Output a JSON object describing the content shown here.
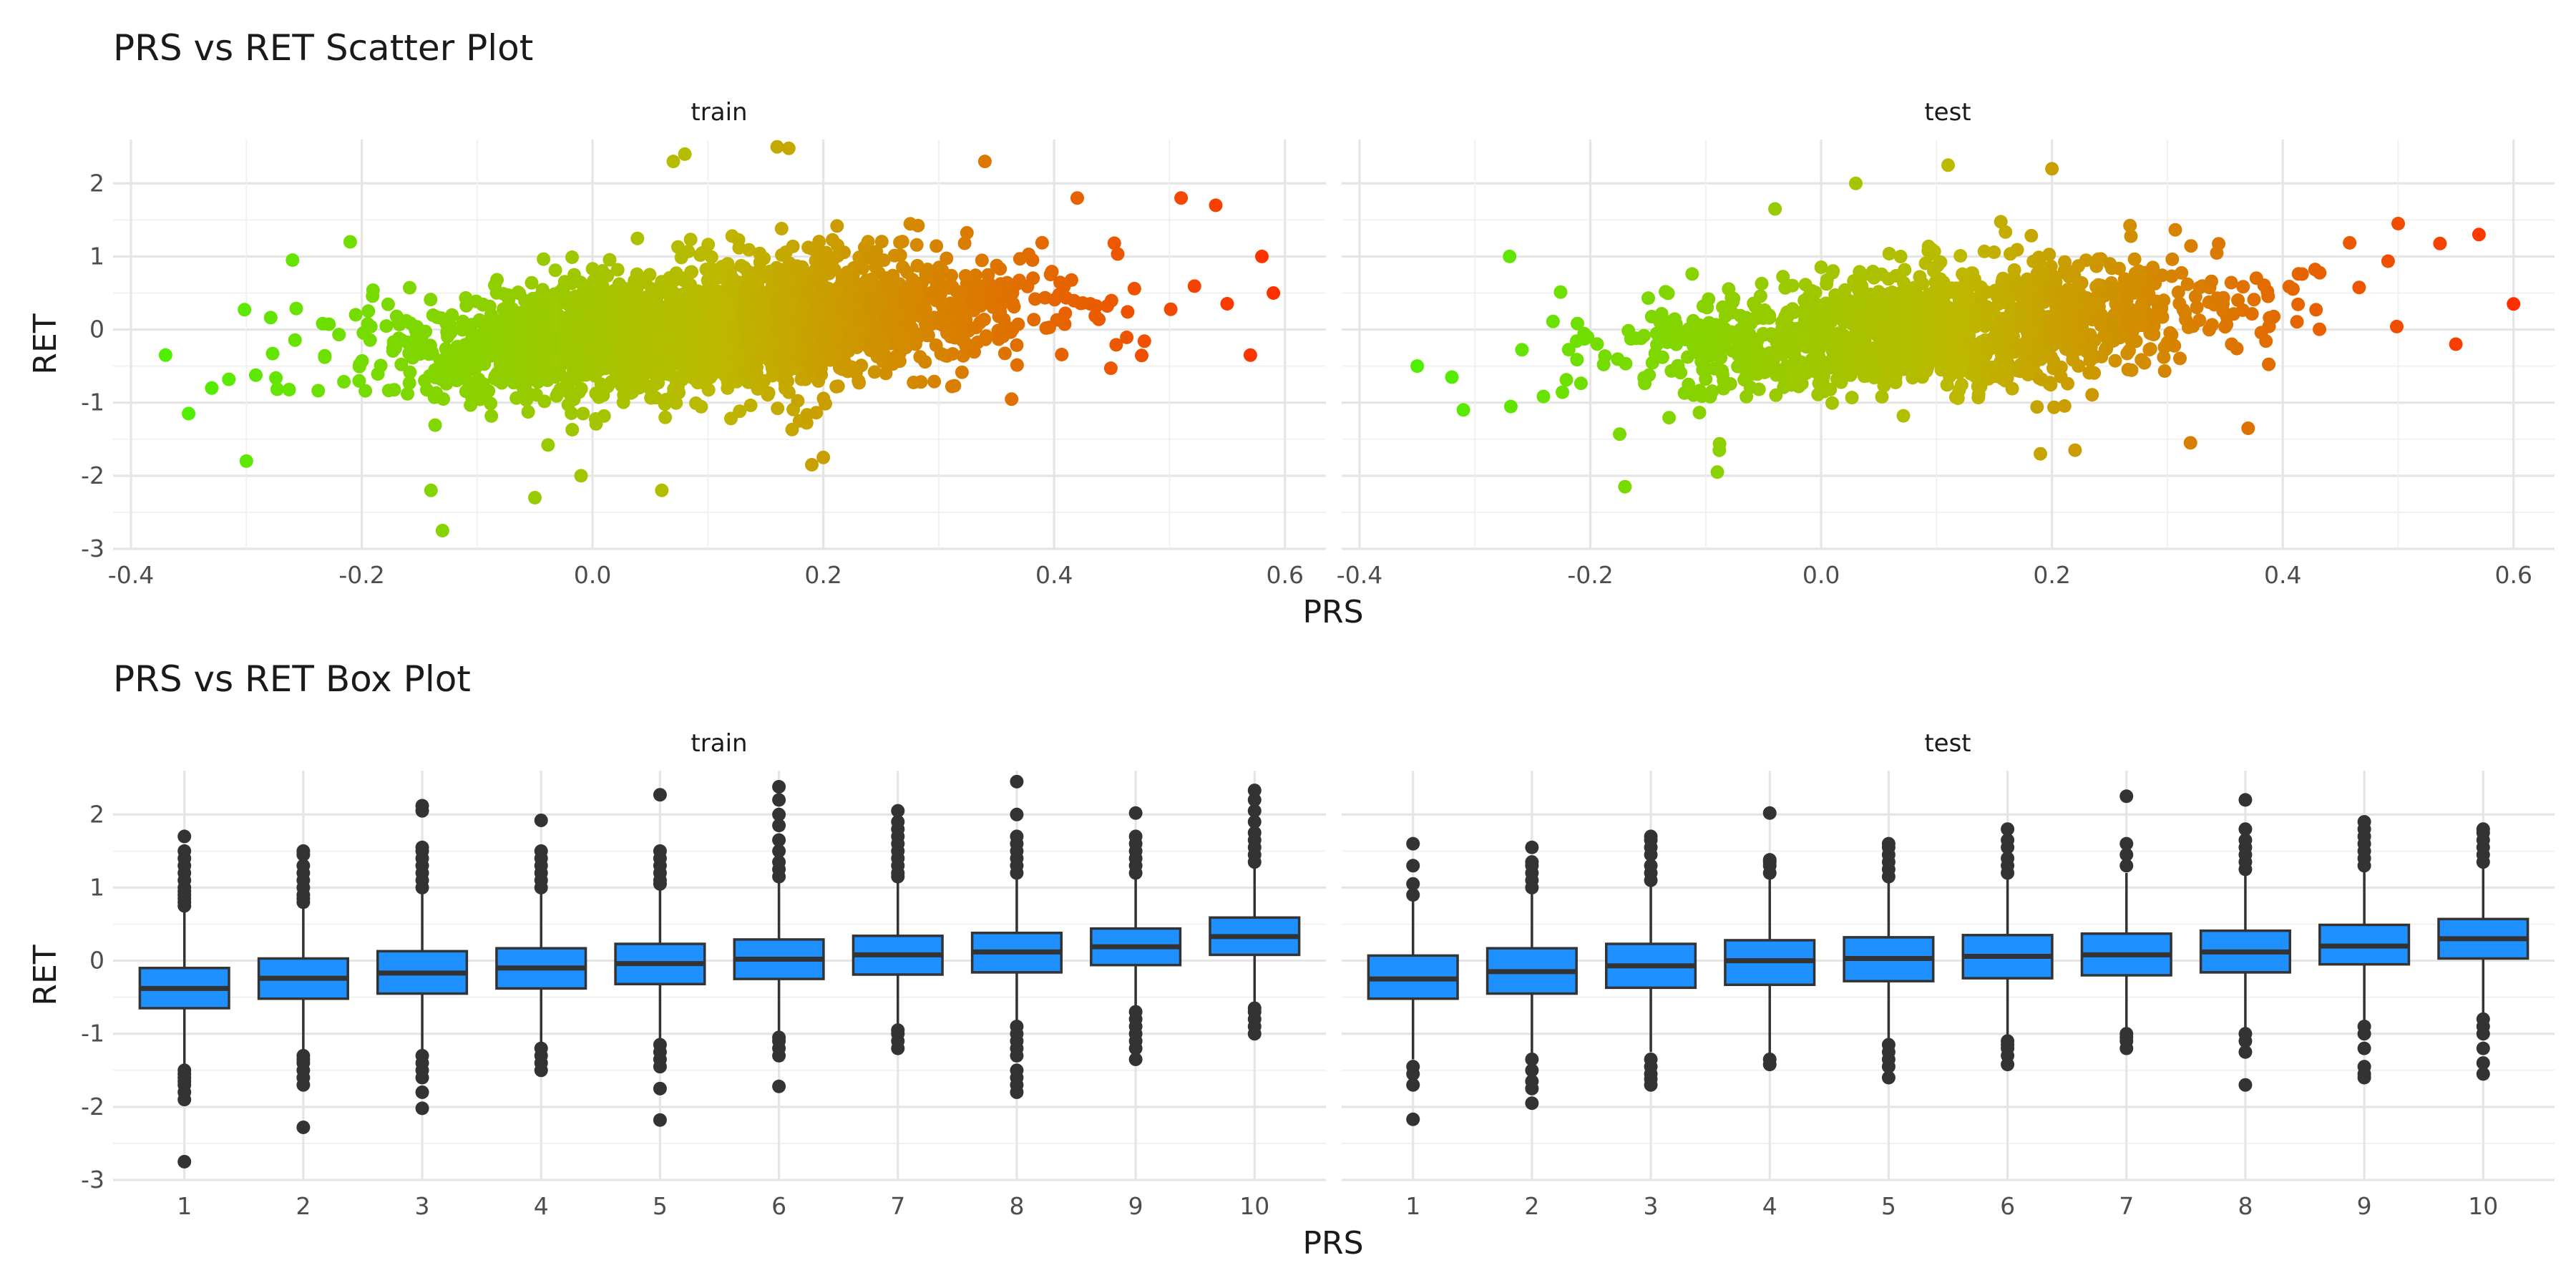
{
  "figure": {
    "scatter_title": "PRS vs RET Scatter Plot",
    "box_title": "PRS vs RET Box Plot",
    "xlabel": "PRS",
    "ylabel": "RET",
    "panels": [
      "train",
      "test"
    ]
  },
  "colors": {
    "low": "#4CF000",
    "mid": "#BDB800",
    "high": "#FF3000",
    "box_fill": "#1E90FF",
    "box_line": "#333333",
    "grid": "#E5E5E5"
  },
  "chart_data": [
    {
      "type": "scatter",
      "title": "PRS vs RET Scatter Plot",
      "xlabel": "PRS",
      "ylabel": "RET",
      "xlim": [
        -0.4,
        0.62
      ],
      "ylim": [
        -3,
        2.6
      ],
      "x_ticks": [
        "-0.4",
        "-0.2",
        "0.0",
        "0.2",
        "0.4",
        "0.6"
      ],
      "x_tick_values": [
        -0.4,
        -0.2,
        0.0,
        0.2,
        0.4,
        0.6
      ],
      "y_ticks": [
        "-3",
        "-2",
        "-1",
        "0",
        "1",
        "2"
      ],
      "y_tick_values": [
        -3,
        -2,
        -1,
        0,
        1,
        2
      ],
      "grid": true,
      "color_scale": "gradient by PRS (green to red)",
      "facets": [
        {
          "name": "train",
          "n_points": 2600,
          "x_mean": 0.1,
          "x_sd": 0.13,
          "x_range": [
            -0.37,
            0.59
          ],
          "y_intercept": -0.1,
          "y_slope": 1.15,
          "y_resid_sd": 0.42,
          "outliers": [
            [
              -0.37,
              -0.35
            ],
            [
              -0.35,
              -1.15
            ],
            [
              -0.33,
              -0.8
            ],
            [
              -0.3,
              -1.8
            ],
            [
              -0.26,
              0.95
            ],
            [
              -0.21,
              1.2
            ],
            [
              -0.14,
              -2.2
            ],
            [
              -0.13,
              -2.75
            ],
            [
              -0.05,
              -2.3
            ],
            [
              -0.01,
              -2.0
            ],
            [
              0.06,
              -2.2
            ],
            [
              0.07,
              2.3
            ],
            [
              0.08,
              2.4
            ],
            [
              0.16,
              2.5
            ],
            [
              0.17,
              2.48
            ],
            [
              0.19,
              -1.85
            ],
            [
              0.2,
              -1.75
            ],
            [
              0.34,
              2.3
            ],
            [
              0.42,
              1.8
            ],
            [
              0.51,
              1.8
            ],
            [
              0.54,
              1.7
            ],
            [
              0.58,
              1.0
            ],
            [
              0.59,
              0.5
            ],
            [
              0.57,
              -0.35
            ]
          ]
        },
        {
          "name": "test",
          "n_points": 1300,
          "x_mean": 0.1,
          "x_sd": 0.13,
          "x_range": [
            -0.36,
            0.6
          ],
          "y_intercept": -0.1,
          "y_slope": 1.15,
          "y_resid_sd": 0.42,
          "outliers": [
            [
              -0.35,
              -0.5
            ],
            [
              -0.32,
              -0.65
            ],
            [
              -0.31,
              -1.1
            ],
            [
              -0.27,
              1.0
            ],
            [
              -0.17,
              -2.15
            ],
            [
              -0.09,
              -1.95
            ],
            [
              -0.04,
              1.65
            ],
            [
              0.03,
              2.0
            ],
            [
              0.11,
              2.25
            ],
            [
              0.19,
              -1.7
            ],
            [
              0.2,
              2.2
            ],
            [
              0.22,
              -1.65
            ],
            [
              0.32,
              -1.55
            ],
            [
              0.37,
              -1.35
            ],
            [
              0.5,
              1.45
            ],
            [
              0.57,
              1.3
            ],
            [
              0.6,
              0.35
            ],
            [
              0.55,
              -0.2
            ]
          ]
        }
      ]
    },
    {
      "type": "box",
      "title": "PRS vs RET Box Plot",
      "xlabel": "PRS",
      "ylabel": "RET",
      "categories": [
        "1",
        "2",
        "3",
        "4",
        "5",
        "6",
        "7",
        "8",
        "9",
        "10"
      ],
      "ylim": [
        -3,
        2.6
      ],
      "y_ticks": [
        "-3",
        "-2",
        "-1",
        "0",
        "1",
        "2"
      ],
      "y_tick_values": [
        -3,
        -2,
        -1,
        0,
        1,
        2
      ],
      "grid": true,
      "facets": [
        {
          "name": "train",
          "boxes": [
            {
              "q1": -0.65,
              "median": -0.38,
              "q3": -0.1,
              "whisker_low": -1.45,
              "whisker_high": 0.7,
              "outliers": [
                0.75,
                0.8,
                0.85,
                0.9,
                0.95,
                1.0,
                1.1,
                1.2,
                1.3,
                1.4,
                1.5,
                1.7,
                -1.5,
                -1.55,
                -1.6,
                -1.65,
                -1.7,
                -1.8,
                -1.9,
                -2.75
              ]
            },
            {
              "q1": -0.52,
              "median": -0.24,
              "q3": 0.03,
              "whisker_low": -1.3,
              "whisker_high": 0.78,
              "outliers": [
                0.8,
                0.85,
                0.9,
                1.0,
                1.1,
                1.2,
                1.3,
                1.45,
                1.5,
                -1.3,
                -1.35,
                -1.4,
                -1.5,
                -1.6,
                -1.7,
                -2.28
              ]
            },
            {
              "q1": -0.45,
              "median": -0.17,
              "q3": 0.13,
              "whisker_low": -1.25,
              "whisker_high": 0.95,
              "outliers": [
                1.0,
                1.1,
                1.2,
                1.3,
                1.4,
                1.5,
                1.55,
                2.05,
                2.12,
                -1.3,
                -1.4,
                -1.5,
                -1.6,
                -1.8,
                -2.02
              ]
            },
            {
              "q1": -0.38,
              "median": -0.1,
              "q3": 0.17,
              "whisker_low": -1.15,
              "whisker_high": 0.95,
              "outliers": [
                1.0,
                1.1,
                1.2,
                1.3,
                1.4,
                1.5,
                1.92,
                -1.2,
                -1.3,
                -1.4,
                -1.5
              ]
            },
            {
              "q1": -0.32,
              "median": -0.04,
              "q3": 0.23,
              "whisker_low": -1.1,
              "whisker_high": 1.0,
              "outliers": [
                1.05,
                1.1,
                1.2,
                1.3,
                1.4,
                1.5,
                2.27,
                -1.15,
                -1.25,
                -1.35,
                -1.45,
                -1.75,
                -2.18
              ]
            },
            {
              "q1": -0.25,
              "median": 0.02,
              "q3": 0.29,
              "whisker_low": -1.0,
              "whisker_high": 1.1,
              "outliers": [
                1.15,
                1.25,
                1.35,
                1.5,
                1.65,
                1.85,
                2.0,
                2.2,
                2.38,
                -1.05,
                -1.1,
                -1.2,
                -1.3,
                -1.72
              ]
            },
            {
              "q1": -0.19,
              "median": 0.08,
              "q3": 0.34,
              "whisker_low": -0.9,
              "whisker_high": 1.1,
              "outliers": [
                1.15,
                1.2,
                1.3,
                1.4,
                1.5,
                1.6,
                1.7,
                1.8,
                1.9,
                2.05,
                -0.95,
                -1.0,
                -1.1,
                -1.2
              ]
            },
            {
              "q1": -0.16,
              "median": 0.12,
              "q3": 0.38,
              "whisker_low": -0.85,
              "whisker_high": 1.15,
              "outliers": [
                1.2,
                1.3,
                1.4,
                1.5,
                1.6,
                1.7,
                2.0,
                2.45,
                -0.9,
                -1.0,
                -1.1,
                -1.2,
                -1.3,
                -1.5,
                -1.6,
                -1.7,
                -1.8
              ]
            },
            {
              "q1": -0.06,
              "median": 0.19,
              "q3": 0.44,
              "whisker_low": -0.65,
              "whisker_high": 1.15,
              "outliers": [
                1.2,
                1.3,
                1.4,
                1.5,
                1.6,
                1.7,
                2.02,
                -0.7,
                -0.8,
                -0.9,
                -1.0,
                -1.1,
                -1.2,
                -1.35
              ]
            },
            {
              "q1": 0.08,
              "median": 0.33,
              "q3": 0.59,
              "whisker_low": -0.6,
              "whisker_high": 1.3,
              "outliers": [
                1.35,
                1.45,
                1.55,
                1.65,
                1.75,
                1.9,
                2.05,
                2.2,
                2.33,
                -0.65,
                -0.7,
                -0.8,
                -0.9,
                -1.0
              ]
            }
          ]
        },
        {
          "name": "test",
          "boxes": [
            {
              "q1": -0.52,
              "median": -0.25,
              "q3": 0.07,
              "whisker_low": -1.35,
              "whisker_high": 0.85,
              "outliers": [
                0.9,
                1.05,
                1.3,
                1.6,
                -1.45,
                -1.55,
                -1.7,
                -2.17
              ]
            },
            {
              "q1": -0.45,
              "median": -0.15,
              "q3": 0.17,
              "whisker_low": -1.3,
              "whisker_high": 0.95,
              "outliers": [
                1.0,
                1.1,
                1.2,
                1.3,
                1.35,
                1.55,
                -1.35,
                -1.5,
                -1.65,
                -1.75,
                -1.95
              ]
            },
            {
              "q1": -0.37,
              "median": -0.07,
              "q3": 0.23,
              "whisker_low": -1.25,
              "whisker_high": 1.05,
              "outliers": [
                1.1,
                1.2,
                1.3,
                1.45,
                1.55,
                1.65,
                1.7,
                -1.35,
                -1.45,
                -1.55,
                -1.62,
                -1.7
              ]
            },
            {
              "q1": -0.33,
              "median": 0.0,
              "q3": 0.28,
              "whisker_low": -1.32,
              "whisker_high": 1.15,
              "outliers": [
                1.2,
                1.3,
                1.35,
                1.38,
                2.02,
                -1.35,
                -1.42
              ]
            },
            {
              "q1": -0.28,
              "median": 0.03,
              "q3": 0.32,
              "whisker_low": -1.1,
              "whisker_high": 1.1,
              "outliers": [
                1.15,
                1.25,
                1.35,
                1.45,
                1.55,
                1.6,
                -1.15,
                -1.25,
                -1.35,
                -1.45,
                -1.6
              ]
            },
            {
              "q1": -0.24,
              "median": 0.06,
              "q3": 0.35,
              "whisker_low": -1.05,
              "whisker_high": 1.15,
              "outliers": [
                1.2,
                1.3,
                1.4,
                1.55,
                1.65,
                1.8,
                -1.1,
                -1.15,
                -1.2,
                -1.3,
                -1.42
              ]
            },
            {
              "q1": -0.2,
              "median": 0.08,
              "q3": 0.37,
              "whisker_low": -0.95,
              "whisker_high": 1.2,
              "outliers": [
                1.3,
                1.45,
                1.6,
                2.25,
                -1.0,
                -1.05,
                -1.1,
                -1.2
              ]
            },
            {
              "q1": -0.16,
              "median": 0.12,
              "q3": 0.41,
              "whisker_low": -0.95,
              "whisker_high": 1.2,
              "outliers": [
                1.25,
                1.35,
                1.45,
                1.55,
                1.65,
                1.8,
                2.2,
                -1.0,
                -1.1,
                -1.25,
                -1.7
              ]
            },
            {
              "q1": -0.05,
              "median": 0.2,
              "q3": 0.49,
              "whisker_low": -0.85,
              "whisker_high": 1.25,
              "outliers": [
                1.3,
                1.4,
                1.5,
                1.6,
                1.7,
                1.8,
                1.9,
                -0.9,
                -1.0,
                -1.2,
                -1.45,
                -1.55,
                -1.6
              ]
            },
            {
              "q1": 0.03,
              "median": 0.3,
              "q3": 0.57,
              "whisker_low": -0.75,
              "whisker_high": 1.3,
              "outliers": [
                1.35,
                1.45,
                1.55,
                1.65,
                1.75,
                1.8,
                -0.8,
                -0.9,
                -1.0,
                -1.2,
                -1.4,
                -1.55
              ]
            }
          ]
        }
      ]
    }
  ]
}
